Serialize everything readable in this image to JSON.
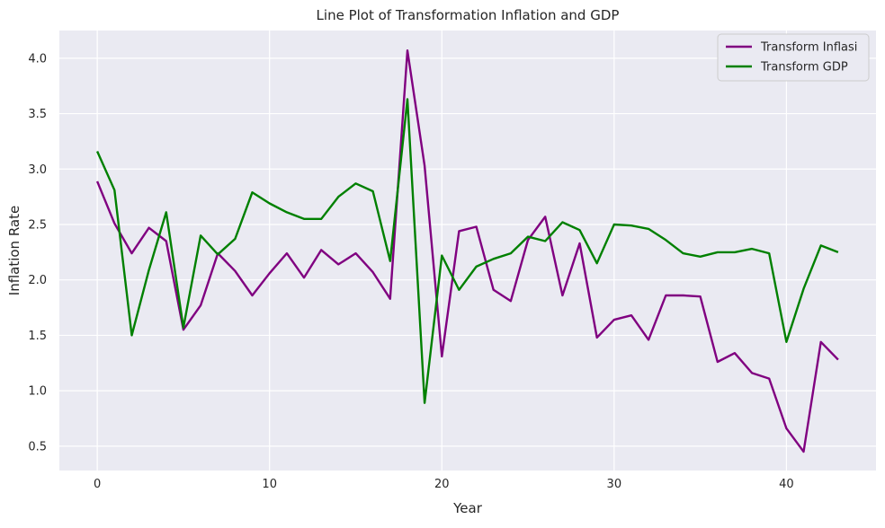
{
  "chart_data": {
    "type": "line",
    "title": "Line Plot of Transformation Inflation and GDP",
    "xlabel": "Year",
    "ylabel": "Inflation Rate",
    "xlim": [
      -2.2,
      45.2
    ],
    "ylim": [
      0.28,
      4.25
    ],
    "xticks": [
      0,
      10,
      20,
      30,
      40
    ],
    "yticks": [
      0.5,
      1.0,
      1.5,
      2.0,
      2.5,
      3.0,
      3.5,
      4.0
    ],
    "ytick_labels": [
      "0.5",
      "1.0",
      "1.5",
      "2.0",
      "2.5",
      "3.0",
      "3.5",
      "4.0"
    ],
    "grid": true,
    "legend_position": "top-right",
    "x": [
      0,
      1,
      2,
      3,
      4,
      5,
      6,
      7,
      8,
      9,
      10,
      11,
      12,
      13,
      14,
      15,
      16,
      17,
      18,
      19,
      20,
      21,
      22,
      23,
      24,
      25,
      26,
      27,
      28,
      29,
      30,
      31,
      32,
      33,
      34,
      35,
      36,
      37,
      38,
      39,
      40,
      41,
      42,
      43
    ],
    "series": [
      {
        "name": "Transform Inflasi",
        "color": "#800080",
        "values": [
          2.89,
          2.51,
          2.24,
          2.47,
          2.35,
          1.55,
          1.77,
          2.24,
          2.08,
          1.86,
          2.06,
          2.24,
          2.02,
          2.27,
          2.14,
          2.24,
          2.07,
          1.83,
          4.07,
          3.03,
          1.31,
          2.44,
          2.48,
          1.91,
          1.81,
          2.36,
          2.57,
          1.86,
          2.33,
          1.48,
          1.64,
          1.68,
          1.46,
          1.86,
          1.86,
          1.85,
          1.26,
          1.34,
          1.16,
          1.11,
          0.66,
          0.45,
          1.44,
          1.28
        ]
      },
      {
        "name": "Transform GDP",
        "color": "#008000",
        "values": [
          3.16,
          2.81,
          1.5,
          2.09,
          2.61,
          1.57,
          2.4,
          2.23,
          2.37,
          2.79,
          2.69,
          2.61,
          2.55,
          2.55,
          2.75,
          2.87,
          2.8,
          2.17,
          3.63,
          0.89,
          2.22,
          1.91,
          2.12,
          2.19,
          2.24,
          2.39,
          2.35,
          2.52,
          2.45,
          2.15,
          2.5,
          2.49,
          2.46,
          2.36,
          2.24,
          2.21,
          2.25,
          2.25,
          2.28,
          2.24,
          1.44,
          1.92,
          2.31,
          2.25
        ]
      }
    ]
  }
}
